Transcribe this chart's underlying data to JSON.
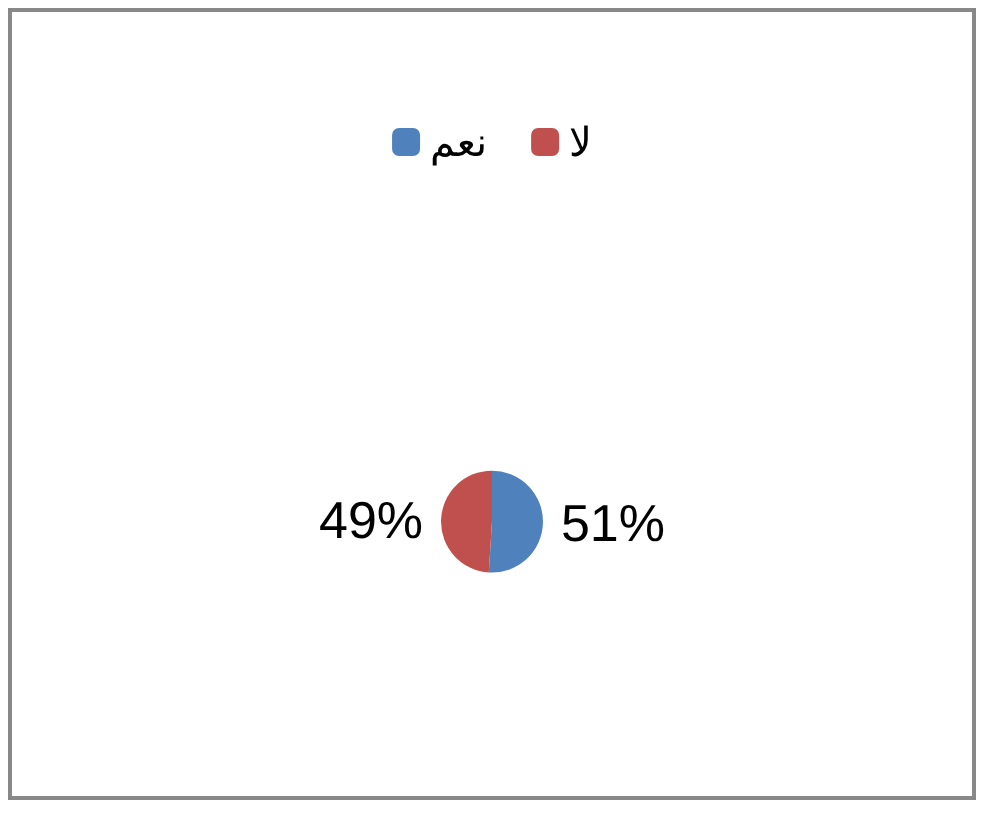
{
  "chart_data": {
    "type": "pie",
    "categories": [
      "نعم",
      "لا"
    ],
    "values": [
      51,
      49
    ],
    "colors": [
      "#4f81bd",
      "#c0504d"
    ],
    "value_labels": [
      "51%",
      "49%"
    ],
    "legend": "top"
  }
}
